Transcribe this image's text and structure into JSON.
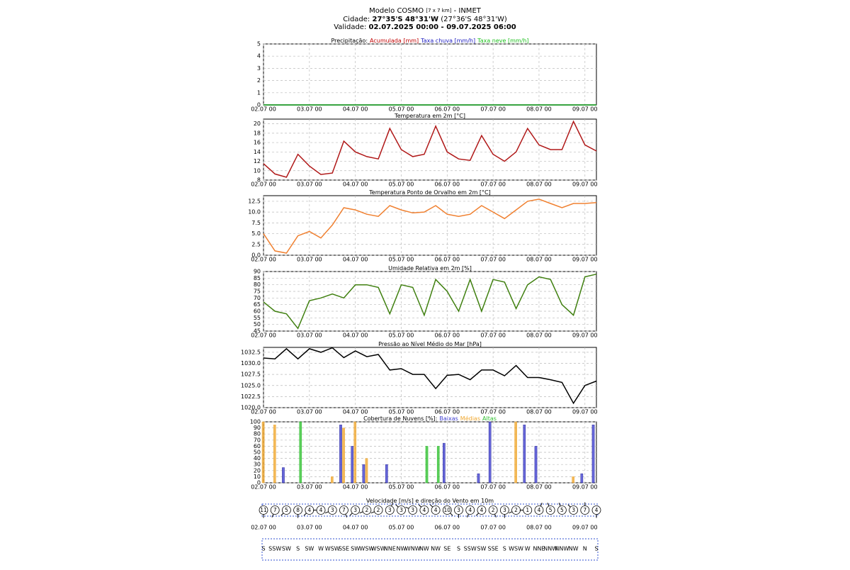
{
  "header": {
    "model": "Modelo COSMO",
    "resolution": "[7 x 7 km]",
    "source": "- INMET",
    "city_label": "Cidade:",
    "city": "27°35'S 48°31'W",
    "city_alt": "(27°36'S 48°31'W)",
    "validity_label": "Validade:",
    "validity": "02.07.2025 00:00 - 09.07.2025 06:00"
  },
  "chart_data": [
    {
      "type": "line",
      "title": "Precipitação:",
      "x": [
        "02.07 00",
        "02.07 06",
        "02.07 12",
        "02.07 18",
        "03.07 00",
        "03.07 06",
        "03.07 12",
        "03.07 18",
        "04.07 00",
        "04.07 06",
        "04.07 12",
        "04.07 18",
        "05.07 00",
        "05.07 06",
        "05.07 12",
        "05.07 18",
        "06.07 00",
        "06.07 06",
        "06.07 12",
        "06.07 18",
        "07.07 00",
        "07.07 06",
        "07.07 12",
        "07.07 18",
        "08.07 00",
        "08.07 06",
        "08.07 12",
        "08.07 18",
        "09.07 00",
        "09.07 06"
      ],
      "series": [
        {
          "name": "Acumulada [mm]",
          "color": "#c00000",
          "values": [
            0,
            0,
            0,
            0,
            0,
            0,
            0,
            0,
            0,
            0,
            0,
            0,
            0,
            0,
            0,
            0,
            0,
            0,
            0,
            0,
            0,
            0,
            0,
            0,
            0,
            0,
            0,
            0,
            0,
            0
          ]
        },
        {
          "name": "Taxa chuva [mm/h]",
          "color": "#2020c0",
          "values": [
            0,
            0,
            0,
            0,
            0,
            0,
            0,
            0,
            0,
            0,
            0,
            0,
            0,
            0,
            0,
            0,
            0,
            0,
            0,
            0,
            0,
            0,
            0,
            0,
            0,
            0,
            0,
            0,
            0,
            0
          ]
        },
        {
          "name": "Taxa neve [mm/h]",
          "color": "#20c020",
          "values": [
            0,
            0,
            0,
            0,
            0,
            0,
            0,
            0,
            0,
            0,
            0,
            0,
            0,
            0,
            0,
            0,
            0,
            0,
            0,
            0,
            0,
            0,
            0,
            0,
            0,
            0,
            0,
            0,
            0,
            0
          ]
        }
      ],
      "ylim": [
        0,
        5
      ],
      "yticks": [
        0,
        1,
        2,
        3,
        4,
        5
      ],
      "xticks": [
        "02.07 00",
        "03.07 00",
        "04.07 00",
        "05.07 00",
        "06.07 00",
        "07.07 00",
        "08.07 00",
        "09.07 00"
      ],
      "grid": true
    },
    {
      "type": "line",
      "title": "Temperatura em 2m [°C]",
      "x": [
        "02.07 00",
        "02.07 06",
        "02.07 12",
        "02.07 18",
        "03.07 00",
        "03.07 06",
        "03.07 12",
        "03.07 18",
        "04.07 00",
        "04.07 06",
        "04.07 12",
        "04.07 18",
        "05.07 00",
        "05.07 06",
        "05.07 12",
        "05.07 18",
        "06.07 00",
        "06.07 06",
        "06.07 12",
        "06.07 18",
        "07.07 00",
        "07.07 06",
        "07.07 12",
        "07.07 18",
        "08.07 00",
        "08.07 06",
        "08.07 12",
        "08.07 18",
        "09.07 00",
        "09.07 06"
      ],
      "values": [
        11.5,
        9.3,
        8.6,
        13.5,
        11,
        9.2,
        9.5,
        16.3,
        14,
        13,
        12.5,
        19,
        14.5,
        13,
        13.5,
        19.5,
        14,
        12.5,
        12.2,
        17.5,
        13.5,
        12,
        14,
        19,
        15.5,
        14.5,
        14.5,
        20.5,
        15.5,
        14.2
      ],
      "color": "#b01818",
      "ylim": [
        8,
        21
      ],
      "yticks": [
        8,
        10,
        12,
        14,
        16,
        18,
        20
      ],
      "xticks": [
        "02.07 00",
        "03.07 00",
        "04.07 00",
        "05.07 00",
        "06.07 00",
        "07.07 00",
        "08.07 00",
        "09.07 00"
      ],
      "grid": true
    },
    {
      "type": "line",
      "title": "Temperatura Ponto de Orvalho em 2m [°C]",
      "x": [
        "02.07 00",
        "02.07 06",
        "02.07 12",
        "02.07 18",
        "03.07 00",
        "03.07 06",
        "03.07 12",
        "03.07 18",
        "04.07 00",
        "04.07 06",
        "04.07 12",
        "04.07 18",
        "05.07 00",
        "05.07 06",
        "05.07 12",
        "05.07 18",
        "06.07 00",
        "06.07 06",
        "06.07 12",
        "06.07 18",
        "07.07 00",
        "07.07 06",
        "07.07 12",
        "07.07 18",
        "08.07 00",
        "08.07 06",
        "08.07 12",
        "08.07 18",
        "09.07 00",
        "09.07 06"
      ],
      "values": [
        5,
        1,
        0.5,
        4.5,
        5.5,
        4,
        7,
        11,
        10.5,
        9.5,
        9,
        11.5,
        10.5,
        9.8,
        10,
        11.5,
        9.5,
        9,
        9.5,
        11.5,
        10,
        8.5,
        10.5,
        12.5,
        13,
        12,
        11,
        12,
        12,
        12.2
      ],
      "color": "#f08030",
      "ylim": [
        0,
        13.8
      ],
      "yticks": [
        {
          "value": 0,
          "label": "0.0"
        },
        {
          "value": 2.5,
          "label": "2.5"
        },
        {
          "value": 5,
          "label": "5.0"
        },
        {
          "value": 7.5,
          "label": "7.5"
        },
        {
          "value": 10,
          "label": "10.0"
        },
        {
          "value": 12.5,
          "label": "12.5"
        }
      ],
      "xticks": [
        "02.07 00",
        "03.07 00",
        "04.07 00",
        "05.07 00",
        "06.07 00",
        "07.07 00",
        "08.07 00",
        "09.07 00"
      ],
      "grid": true
    },
    {
      "type": "line",
      "title": "Umidade Relativa em 2m [%]",
      "x": [
        "02.07 00",
        "02.07 06",
        "02.07 12",
        "02.07 18",
        "03.07 00",
        "03.07 06",
        "03.07 12",
        "03.07 18",
        "04.07 00",
        "04.07 06",
        "04.07 12",
        "04.07 18",
        "05.07 00",
        "05.07 06",
        "05.07 12",
        "05.07 18",
        "06.07 00",
        "06.07 06",
        "06.07 12",
        "06.07 18",
        "07.07 00",
        "07.07 06",
        "07.07 12",
        "07.07 18",
        "08.07 00",
        "08.07 06",
        "08.07 12",
        "08.07 18",
        "09.07 00",
        "09.07 06"
      ],
      "values": [
        67,
        60,
        58,
        47,
        68,
        70,
        73,
        70,
        80,
        80,
        78,
        58,
        80,
        78,
        57,
        84,
        75,
        60,
        84,
        60,
        84,
        82,
        62,
        80,
        86,
        84,
        65,
        57,
        86,
        88
      ],
      "color": "#408010",
      "ylim": [
        45,
        90
      ],
      "yticks": [
        45,
        50,
        55,
        60,
        65,
        70,
        75,
        80,
        85,
        90
      ],
      "xticks": [
        "02.07 00",
        "03.07 00",
        "04.07 00",
        "05.07 00",
        "06.07 00",
        "07.07 00",
        "08.07 00",
        "09.07 00"
      ],
      "grid": true
    },
    {
      "type": "line",
      "title": "Pressão ao Nível Médio do Mar [hPa]",
      "x": [
        "02.07 00",
        "02.07 06",
        "02.07 12",
        "02.07 18",
        "03.07 00",
        "03.07 06",
        "03.07 12",
        "03.07 18",
        "04.07 00",
        "04.07 06",
        "04.07 12",
        "04.07 18",
        "05.07 00",
        "05.07 06",
        "05.07 12",
        "05.07 18",
        "06.07 00",
        "06.07 06",
        "06.07 12",
        "06.07 18",
        "07.07 00",
        "07.07 06",
        "07.07 12",
        "07.07 18",
        "08.07 00",
        "08.07 06",
        "08.07 12",
        "08.07 18",
        "09.07 00",
        "09.07 06"
      ],
      "values": [
        1031.2,
        1031,
        1033.3,
        1031,
        1033.3,
        1032.5,
        1033.5,
        1031.3,
        1032.8,
        1031.5,
        1032,
        1028.5,
        1028.8,
        1027.5,
        1027.5,
        1024.3,
        1027.3,
        1027.5,
        1026.3,
        1028.5,
        1028.5,
        1027.2,
        1029.5,
        1026.8,
        1026.8,
        1026.3,
        1025.7,
        1021,
        1025,
        1026
      ],
      "color": "#000000",
      "ylim": [
        1020,
        1033.6
      ],
      "yticks": [
        {
          "value": 1020,
          "label": "1020.0"
        },
        {
          "value": 1022.5,
          "label": "1022.5"
        },
        {
          "value": 1025,
          "label": "1025.0"
        },
        {
          "value": 1027.5,
          "label": "1027.5"
        },
        {
          "value": 1030,
          "label": "1030.0"
        },
        {
          "value": 1032.5,
          "label": "1032.5"
        }
      ],
      "xticks": [
        "02.07 00",
        "03.07 00",
        "04.07 00",
        "05.07 00",
        "06.07 00",
        "07.07 00",
        "08.07 00",
        "09.07 00"
      ],
      "grid": true
    },
    {
      "type": "bar",
      "title": "Cobertura de Nuvens [%]:",
      "x": [
        "02.07 00",
        "02.07 06",
        "02.07 12",
        "02.07 18",
        "03.07 00",
        "03.07 06",
        "03.07 12",
        "03.07 18",
        "04.07 00",
        "04.07 06",
        "04.07 12",
        "04.07 18",
        "05.07 00",
        "05.07 06",
        "05.07 12",
        "05.07 18",
        "06.07 00",
        "06.07 06",
        "06.07 12",
        "06.07 18",
        "07.07 00",
        "07.07 06",
        "07.07 12",
        "07.07 18",
        "08.07 00",
        "08.07 06",
        "08.07 12",
        "08.07 18",
        "09.07 00",
        "09.07 06"
      ],
      "series": [
        {
          "name": "Baixas",
          "color": "#4040d0",
          "values": [
            0,
            0,
            25,
            0,
            0,
            0,
            0,
            95,
            60,
            30,
            0,
            30,
            0,
            0,
            0,
            0,
            65,
            0,
            0,
            15,
            100,
            0,
            0,
            95,
            60,
            0,
            0,
            0,
            15,
            95
          ]
        },
        {
          "name": "Médias",
          "color": "#f0a830",
          "values": [
            100,
            95,
            0,
            0,
            0,
            0,
            10,
            90,
            100,
            40,
            0,
            0,
            0,
            0,
            0,
            0,
            0,
            0,
            0,
            0,
            0,
            0,
            100,
            0,
            0,
            0,
            0,
            10,
            0,
            0
          ]
        },
        {
          "name": "Altas",
          "color": "#30c030",
          "values": [
            0,
            0,
            0,
            100,
            0,
            0,
            0,
            0,
            0,
            0,
            0,
            0,
            0,
            0,
            60,
            60,
            0,
            0,
            0,
            0,
            0,
            0,
            0,
            0,
            0,
            0,
            0,
            0,
            0,
            0
          ]
        }
      ],
      "ylim": [
        0,
        100
      ],
      "yticks": [
        0,
        10,
        20,
        30,
        40,
        50,
        60,
        70,
        80,
        90,
        100
      ],
      "xticks": [
        "02.07 00",
        "03.07 00",
        "04.07 00",
        "05.07 00",
        "06.07 00",
        "07.07 00",
        "08.07 00",
        "09.07 00"
      ],
      "grid": true
    },
    {
      "type": "wind",
      "title": "Velocidade [m/s] e direção do Vento em 10m",
      "x": [
        "02.07 00",
        "02.07 06",
        "02.07 12",
        "02.07 18",
        "03.07 00",
        "03.07 06",
        "03.07 12",
        "03.07 18",
        "04.07 00",
        "04.07 06",
        "04.07 12",
        "04.07 18",
        "05.07 00",
        "05.07 06",
        "05.07 12",
        "05.07 18",
        "06.07 00",
        "06.07 06",
        "06.07 12",
        "06.07 18",
        "07.07 00",
        "07.07 06",
        "07.07 12",
        "07.07 18",
        "08.07 00",
        "08.07 06",
        "08.07 12",
        "08.07 18",
        "09.07 00",
        "09.07 06"
      ],
      "values": [
        11,
        7,
        5,
        8,
        4,
        4,
        3,
        7,
        3,
        2,
        2,
        3,
        3,
        3,
        4,
        4,
        10,
        3,
        4,
        4,
        2,
        3,
        2,
        1,
        4,
        5,
        5,
        3,
        7,
        4
      ],
      "directions": [
        "S",
        "SSW",
        "SW",
        "S",
        "SW",
        "W",
        "WSW",
        "SSE",
        "SW",
        "WSW",
        "WSW",
        "NNE",
        "NW",
        "WNW",
        "NW",
        "NW",
        "SE",
        "S",
        "SSW",
        "SW",
        "SSE",
        "S",
        "WSW",
        "W",
        "NNE",
        "NNW",
        "NNW",
        "NW",
        "N",
        "S"
      ],
      "xticks": [
        "02.07 00",
        "03.07 00",
        "04.07 00",
        "05.07 00",
        "06.07 00",
        "07.07 00",
        "08.07 00",
        "09.07 00"
      ]
    }
  ]
}
